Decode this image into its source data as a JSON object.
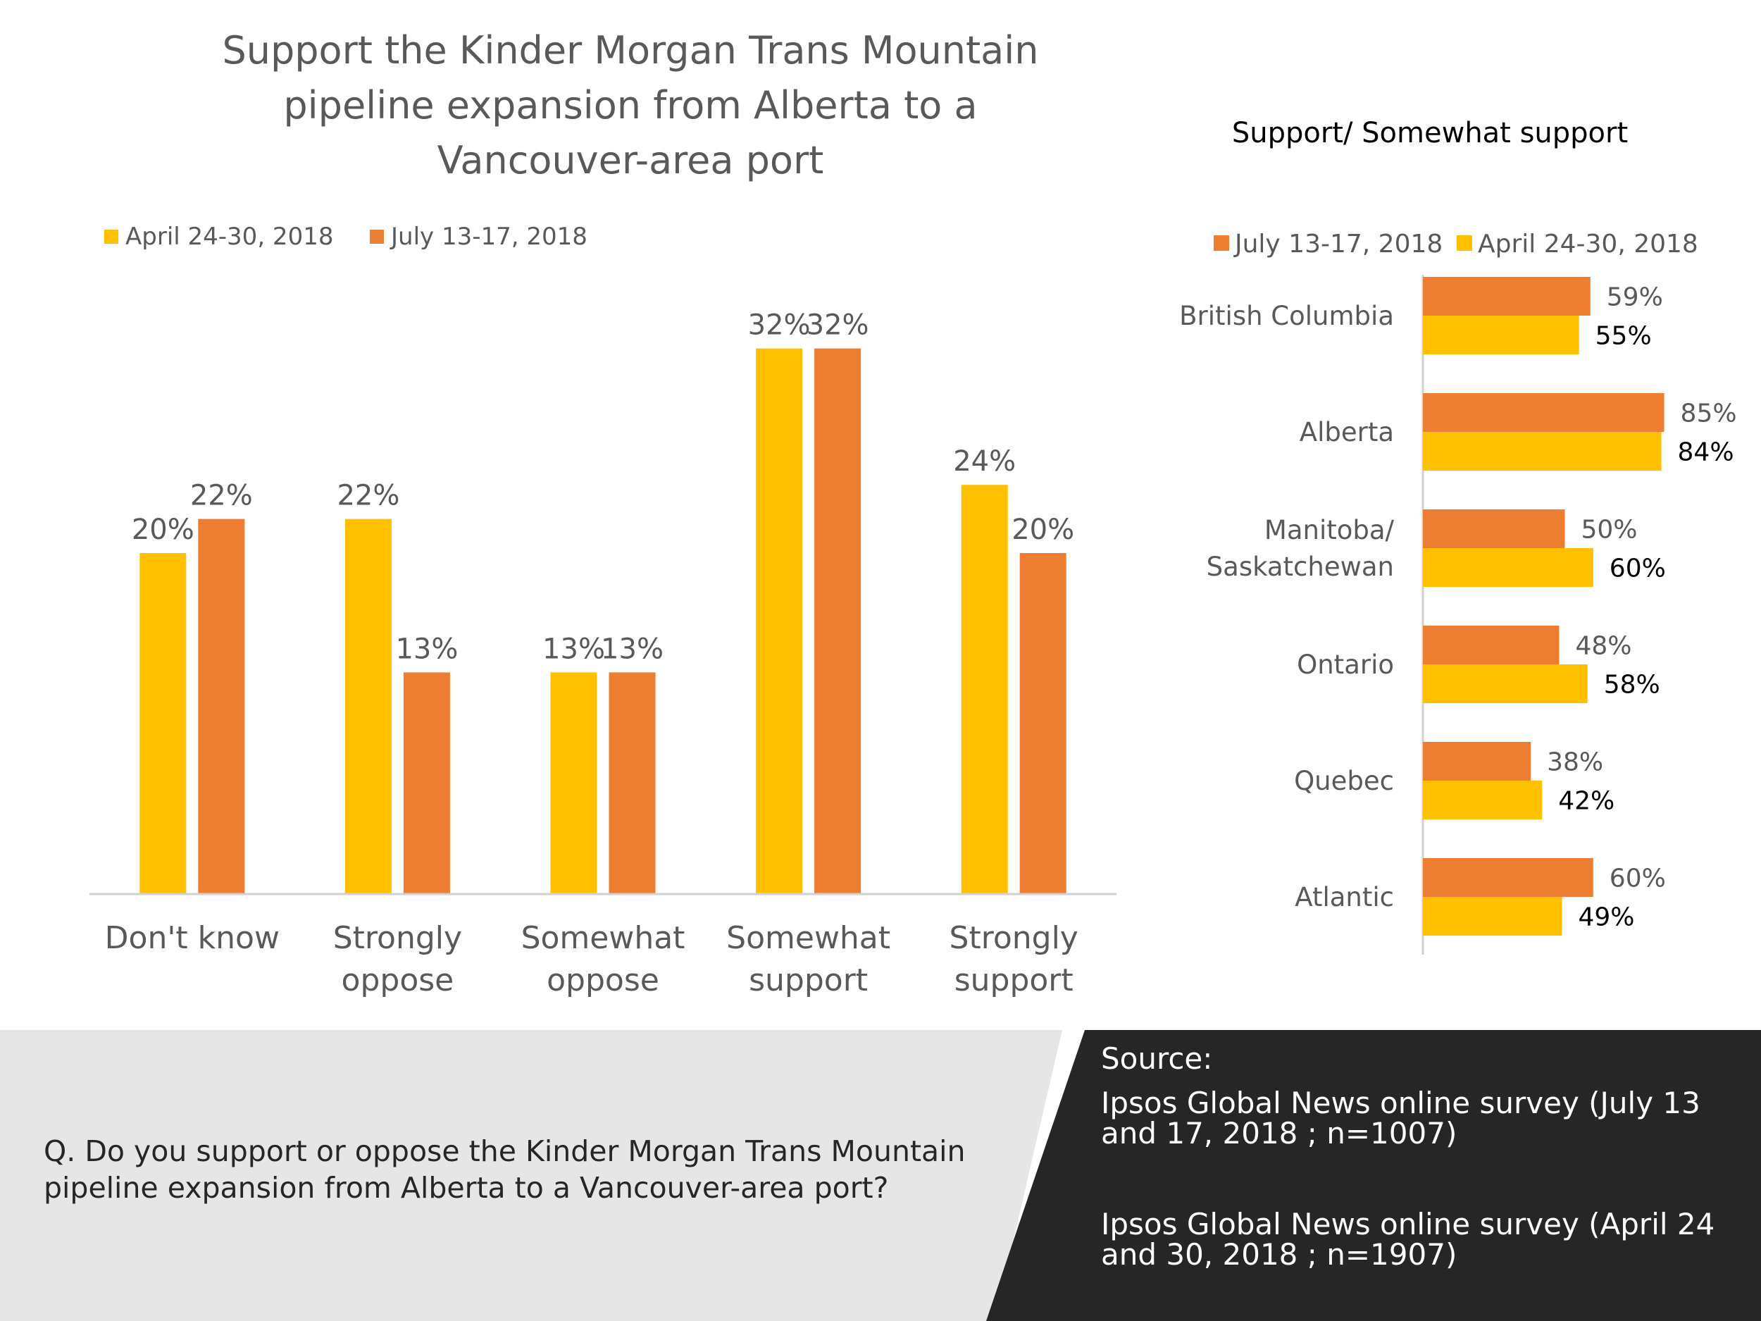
{
  "colors": {
    "april": "#FFC000",
    "july": "#ED7D31",
    "axis": "#D0D0D0",
    "text_gray": "#595959",
    "footer_left_bg": "#E6E6E6",
    "footer_right_bg": "#262626",
    "footer_right_text": "#FFFFFF"
  },
  "chart_data": [
    {
      "type": "bar",
      "title": "Support the Kinder Morgan Trans Mountain pipeline expansion from Alberta to a Vancouver-area port",
      "title_lines": [
        "Support the Kinder Morgan Trans Mountain",
        "pipeline expansion from Alberta to a",
        "Vancouver-area port"
      ],
      "categories": [
        "Don't know",
        "Strongly oppose",
        "Somewhat oppose",
        "Somewhat support",
        "Strongly support"
      ],
      "category_lines": [
        [
          "Don't know"
        ],
        [
          "Strongly",
          "oppose"
        ],
        [
          "Somewhat",
          "oppose"
        ],
        [
          "Somewhat",
          "support"
        ],
        [
          "Strongly",
          "support"
        ]
      ],
      "series": [
        {
          "name": "April 24-30, 2018",
          "values": [
            20,
            22,
            13,
            32,
            24
          ],
          "labels": [
            "20%",
            "22%",
            "13%",
            "32%",
            "24%"
          ]
        },
        {
          "name": "July 13-17, 2018",
          "values": [
            22,
            13,
            13,
            32,
            20
          ],
          "labels": [
            "22%",
            "13%",
            "13%",
            "32%",
            "20%"
          ]
        }
      ],
      "unit": "%",
      "legend": "top-left",
      "grid": false
    },
    {
      "type": "bar",
      "orientation": "horizontal",
      "title": "Support/ Somewhat support",
      "categories": [
        "British Columbia",
        "Alberta",
        "Manitoba/ Saskatchewan",
        "Ontario",
        "Quebec",
        "Atlantic"
      ],
      "category_lines": [
        [
          "British Columbia"
        ],
        [
          "Alberta"
        ],
        [
          "Manitoba/",
          "Saskatchewan"
        ],
        [
          "Ontario"
        ],
        [
          "Quebec"
        ],
        [
          "Atlantic"
        ]
      ],
      "series": [
        {
          "name": "July 13-17, 2018",
          "values": [
            59,
            85,
            50,
            48,
            38,
            60
          ],
          "labels": [
            "59%",
            "85%",
            "50%",
            "48%",
            "38%",
            "60%"
          ]
        },
        {
          "name": "April 24-30, 2018",
          "values": [
            55,
            84,
            60,
            58,
            42,
            49
          ],
          "labels": [
            "55%",
            "84%",
            "60%",
            "58%",
            "42%",
            "49%"
          ]
        }
      ],
      "unit": "%",
      "legend": "top",
      "grid": false
    }
  ],
  "footer": {
    "question": "Q.   Do you support or oppose the Kinder Morgan Trans Mountain pipeline expansion from Alberta to a Vancouver-area port?",
    "question_lines": [
      "Q.   Do you support or oppose the Kinder Morgan Trans Mountain",
      "pipeline expansion from Alberta to a Vancouver-area port?"
    ],
    "source_heading": "Source:",
    "source_1": "Ipsos Global News online survey (July 13 and 17, 2018 ; n=1007)",
    "source_1_lines": [
      "Ipsos Global News online survey (July 13",
      "and 17, 2018 ; n=1007)"
    ],
    "source_2": "Ipsos Global News online survey (April 24 and 30, 2018 ; n=1907)",
    "source_2_lines": [
      "Ipsos Global News online survey (April 24",
      "and 30, 2018 ; n=1907)"
    ]
  }
}
